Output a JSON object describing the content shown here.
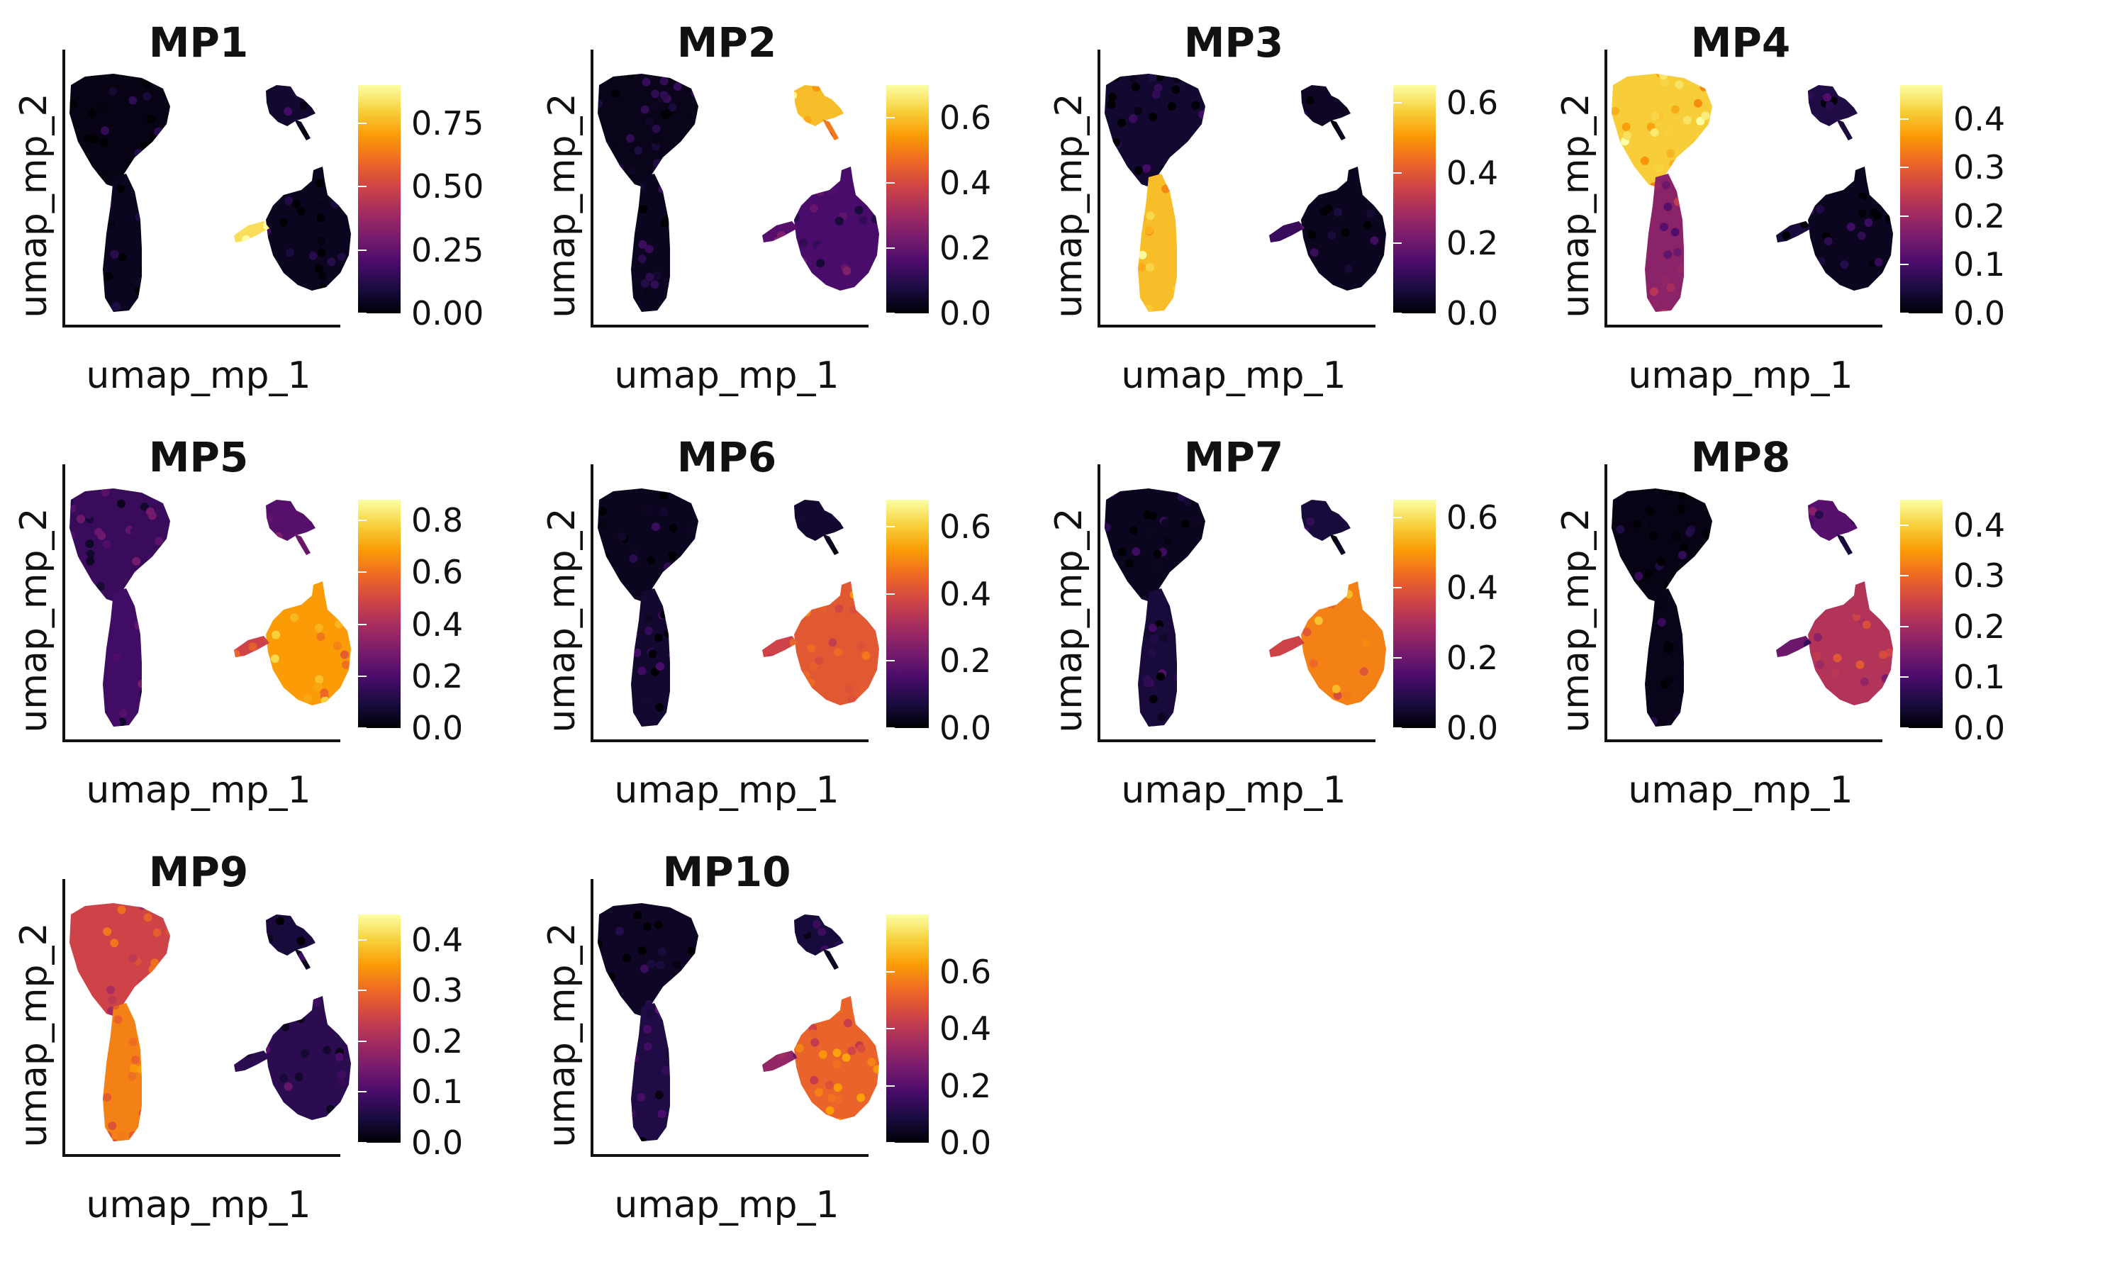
{
  "chart_data": [
    {
      "type": "scatter",
      "title": "MP1",
      "xlabel": "umap_mp_1",
      "ylabel": "umap_mp_2",
      "colorbar_ticks": [
        "0.00",
        "0.25",
        "0.50",
        "0.75"
      ],
      "colorbar_range": [
        0,
        0.9
      ],
      "high_region": "mid-arm"
    },
    {
      "type": "scatter",
      "title": "MP2",
      "xlabel": "umap_mp_1",
      "ylabel": "umap_mp_2",
      "colorbar_ticks": [
        "0.0",
        "0.2",
        "0.4",
        "0.6"
      ],
      "colorbar_range": [
        0,
        0.7
      ],
      "high_region": "top-small"
    },
    {
      "type": "scatter",
      "title": "MP3",
      "xlabel": "umap_mp_1",
      "ylabel": "umap_mp_2",
      "colorbar_ticks": [
        "0.0",
        "0.2",
        "0.4",
        "0.6"
      ],
      "colorbar_range": [
        0,
        0.65
      ],
      "high_region": "left-bottom"
    },
    {
      "type": "scatter",
      "title": "MP4",
      "xlabel": "umap_mp_1",
      "ylabel": "umap_mp_2",
      "colorbar_ticks": [
        "0.0",
        "0.1",
        "0.2",
        "0.3",
        "0.4"
      ],
      "colorbar_range": [
        0,
        0.47
      ],
      "high_region": "left-top"
    },
    {
      "type": "scatter",
      "title": "MP5",
      "xlabel": "umap_mp_1",
      "ylabel": "umap_mp_2",
      "colorbar_ticks": [
        "0.0",
        "0.2",
        "0.4",
        "0.6",
        "0.8"
      ],
      "colorbar_range": [
        0,
        0.88
      ],
      "high_region": "right-all"
    },
    {
      "type": "scatter",
      "title": "MP6",
      "xlabel": "umap_mp_1",
      "ylabel": "umap_mp_2",
      "colorbar_ticks": [
        "0.0",
        "0.2",
        "0.4",
        "0.6"
      ],
      "colorbar_range": [
        0,
        0.68
      ],
      "high_region": "right-top"
    },
    {
      "type": "scatter",
      "title": "MP7",
      "xlabel": "umap_mp_1",
      "ylabel": "umap_mp_2",
      "colorbar_ticks": [
        "0.0",
        "0.2",
        "0.4",
        "0.6"
      ],
      "colorbar_range": [
        0,
        0.65
      ],
      "high_region": "right-bottom"
    },
    {
      "type": "scatter",
      "title": "MP8",
      "xlabel": "umap_mp_1",
      "ylabel": "umap_mp_2",
      "colorbar_ticks": [
        "0.0",
        "0.1",
        "0.2",
        "0.3",
        "0.4"
      ],
      "colorbar_range": [
        0,
        0.45
      ],
      "high_region": "right-mid"
    },
    {
      "type": "scatter",
      "title": "MP9",
      "xlabel": "umap_mp_1",
      "ylabel": "umap_mp_2",
      "colorbar_ticks": [
        "0.0",
        "0.1",
        "0.2",
        "0.3",
        "0.4"
      ],
      "colorbar_range": [
        0,
        0.45
      ],
      "high_region": "left-all"
    },
    {
      "type": "scatter",
      "title": "MP10",
      "xlabel": "umap_mp_1",
      "ylabel": "umap_mp_2",
      "colorbar_ticks": [
        "0.0",
        "0.2",
        "0.4",
        "0.6"
      ],
      "colorbar_range": [
        0,
        0.8
      ],
      "high_region": "right-lower"
    }
  ],
  "colormap": [
    "#000004",
    "#1b0c41",
    "#4a0c6b",
    "#781c6d",
    "#a52c60",
    "#cf4446",
    "#ed6925",
    "#fb9b06",
    "#f7d13d",
    "#fcffa4"
  ]
}
